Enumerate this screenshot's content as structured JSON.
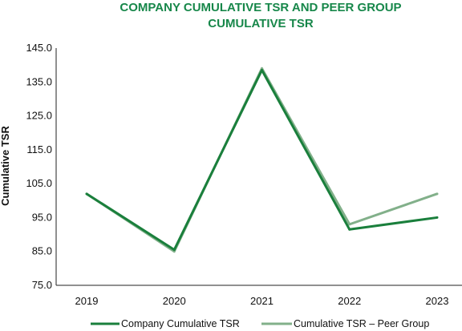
{
  "chart_data": {
    "type": "line",
    "title": [
      "COMPANY CUMULATIVE TSR AND PEER GROUP",
      "CUMULATIVE TSR"
    ],
    "xlabel": "",
    "ylabel": "Cumulative TSR",
    "categories": [
      "2019",
      "2020",
      "2021",
      "2022",
      "2023"
    ],
    "ylim": [
      75.0,
      145.0
    ],
    "yticks": [
      "145.0",
      "135.0",
      "125.0",
      "115.0",
      "105.0",
      "95.0",
      "85.0",
      "75.0"
    ],
    "ytick_values": [
      145,
      135,
      125,
      115,
      105,
      95,
      85,
      75
    ],
    "grid": false,
    "legend": "bottom",
    "series": [
      {
        "name": "Company Cumulative TSR",
        "color": "#1a7f3c",
        "values": [
          102.0,
          85.5,
          138.5,
          91.5,
          95.0
        ]
      },
      {
        "name": "Cumulative TSR – Peer Group",
        "color": "#82b08a",
        "values": [
          102.0,
          85.0,
          139.0,
          93.0,
          102.0
        ]
      }
    ]
  }
}
